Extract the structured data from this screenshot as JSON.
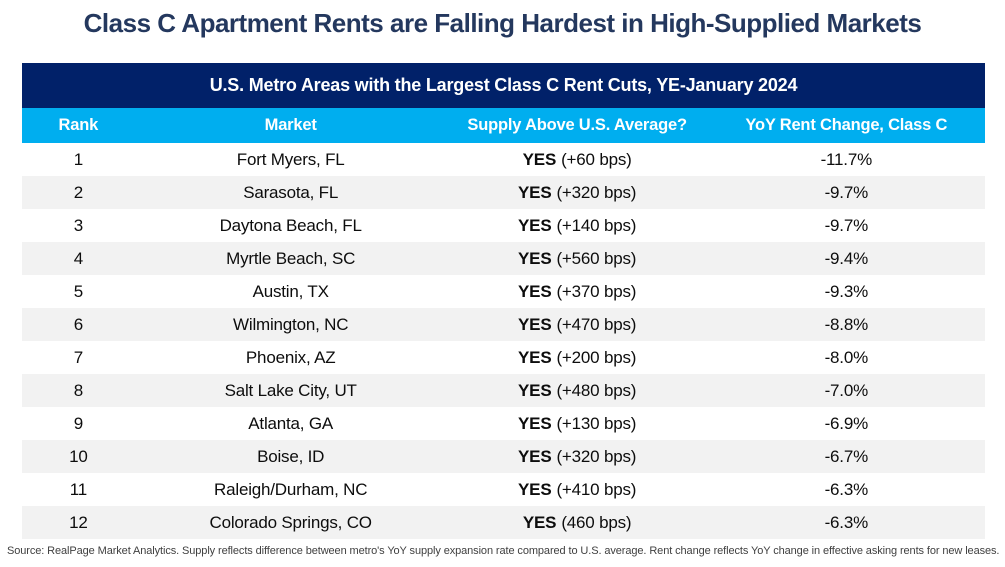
{
  "page_title": "Class C Apartment Rents are Falling Hardest in High-Supplied Markets",
  "chart_data": {
    "type": "table",
    "title": "U.S. Metro Areas with the Largest Class C Rent Cuts, YE-January 2024",
    "columns": [
      "Rank",
      "Market",
      "Supply Above U.S. Average?",
      "YoY Rent Change, Class C"
    ],
    "rows": [
      {
        "rank": "1",
        "market": "Fort Myers, FL",
        "supply_flag": "YES",
        "supply_bps": "(+60 bps)",
        "yoy_rent_change": "-11.7%"
      },
      {
        "rank": "2",
        "market": "Sarasota, FL",
        "supply_flag": "YES",
        "supply_bps": "(+320 bps)",
        "yoy_rent_change": "-9.7%"
      },
      {
        "rank": "3",
        "market": "Daytona Beach, FL",
        "supply_flag": "YES",
        "supply_bps": "(+140 bps)",
        "yoy_rent_change": "-9.7%"
      },
      {
        "rank": "4",
        "market": "Myrtle Beach, SC",
        "supply_flag": "YES",
        "supply_bps": "(+560 bps)",
        "yoy_rent_change": "-9.4%"
      },
      {
        "rank": "5",
        "market": "Austin, TX",
        "supply_flag": "YES",
        "supply_bps": "(+370 bps)",
        "yoy_rent_change": "-9.3%"
      },
      {
        "rank": "6",
        "market": "Wilmington, NC",
        "supply_flag": "YES",
        "supply_bps": "(+470 bps)",
        "yoy_rent_change": "-8.8%"
      },
      {
        "rank": "7",
        "market": "Phoenix, AZ",
        "supply_flag": "YES",
        "supply_bps": "(+200 bps)",
        "yoy_rent_change": "-8.0%"
      },
      {
        "rank": "8",
        "market": "Salt Lake City, UT",
        "supply_flag": "YES",
        "supply_bps": "(+480 bps)",
        "yoy_rent_change": "-7.0%"
      },
      {
        "rank": "9",
        "market": "Atlanta, GA",
        "supply_flag": "YES",
        "supply_bps": "(+130 bps)",
        "yoy_rent_change": "-6.9%"
      },
      {
        "rank": "10",
        "market": "Boise, ID",
        "supply_flag": "YES",
        "supply_bps": "(+320 bps)",
        "yoy_rent_change": "-6.7%"
      },
      {
        "rank": "11",
        "market": "Raleigh/Durham, NC",
        "supply_flag": "YES",
        "supply_bps": "(+410 bps)",
        "yoy_rent_change": "-6.3%"
      },
      {
        "rank": "12",
        "market": "Colorado Springs, CO",
        "supply_flag": "YES",
        "supply_bps": "(460 bps)",
        "yoy_rent_change": "-6.3%"
      }
    ]
  },
  "source_note": "Source: RealPage Market Analytics. Supply reflects difference between metro's YoY supply expansion rate compared to U.S. average. Rent change reflects YoY change in effective asking rents for new leases.",
  "colors": {
    "navy": "#012169",
    "blue": "#00AEEF",
    "stripe": "#F2F2F2",
    "title_color": "#24385E"
  }
}
